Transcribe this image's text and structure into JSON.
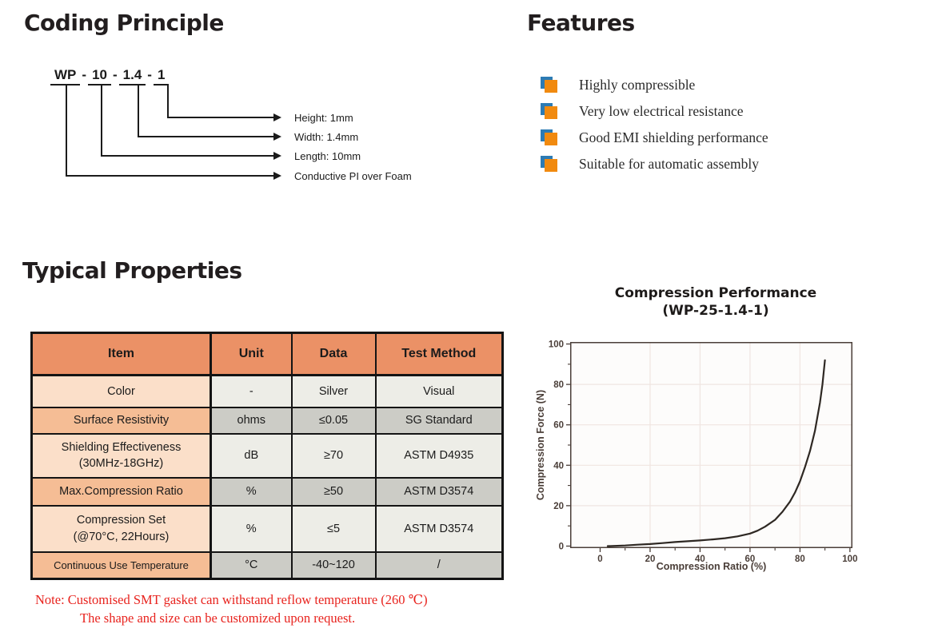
{
  "coding_principle": {
    "title": "Coding Principle",
    "code_segments": [
      "WP",
      "10",
      "1.4",
      "1"
    ],
    "separator": "-",
    "labels": [
      "Height: 1mm",
      "Width: 1.4mm",
      "Length: 10mm",
      "Conductive PI over Foam"
    ]
  },
  "features": {
    "title": "Features",
    "items": [
      "Highly compressible",
      "Very low electrical resistance",
      "Good EMI shielding performance",
      "Suitable for automatic assembly"
    ]
  },
  "typical_properties": {
    "title": "Typical Properties",
    "table": {
      "headers": [
        "Item",
        "Unit",
        "Data",
        "Test Method"
      ],
      "rows": [
        {
          "item": "Color",
          "unit": "-",
          "data": "Silver",
          "method": "Visual"
        },
        {
          "item": "Surface Resistivity",
          "unit": "ohms",
          "data": "≤0.05",
          "method": "SG Standard"
        },
        {
          "item_line1": "Shielding Effectiveness",
          "item_line2": "(30MHz-18GHz)",
          "unit": "dB",
          "data": "≥70",
          "method": "ASTM D4935"
        },
        {
          "item": "Max.Compression Ratio",
          "unit": "%",
          "data": "≥50",
          "method": "ASTM D3574"
        },
        {
          "item_line1": "Compression Set",
          "item_line2": "(@70°C, 22Hours)",
          "unit": "%",
          "data": "≤5",
          "method": "ASTM D3574"
        },
        {
          "item": "Continuous Use Temperature",
          "unit": "°C",
          "data": "-40~120",
          "method": "/"
        }
      ]
    },
    "note_line1": "Note: Customised SMT gasket can withstand reflow temperature (260 ℃)",
    "note_line2": "The shape and size can be customized upon request."
  },
  "colors": {
    "table_header_bg": "#EB9166",
    "item_light_bg": "#FBDFC9",
    "item_dark_bg": "#F5BD95",
    "data_light_bg": "#EDEDE7",
    "data_dark_bg": "#CCCCC6",
    "note_red": "#E8231E",
    "bullet_orange": "#F18A0F",
    "bullet_blue": "#2C7BB4"
  },
  "chart_data": {
    "type": "line",
    "title": "Compression Performance",
    "subtitle": "(WP-25-1.4-1)",
    "xlabel": "Compression Ratio (%)",
    "ylabel": "Compression Force (N)",
    "xlim": [
      -12,
      101
    ],
    "ylim": [
      -1,
      101
    ],
    "x_major_ticks": [
      0,
      20,
      40,
      60,
      80,
      100
    ],
    "x_minor_ticks": [
      10,
      30,
      50,
      70,
      90
    ],
    "y_major_ticks": [
      0,
      20,
      40,
      60,
      80,
      100
    ],
    "y_minor_ticks": [
      10,
      30,
      50,
      70,
      90
    ],
    "grid_values_x": [
      20,
      40,
      60,
      80
    ],
    "grid_values_y": [
      20,
      40,
      60,
      80
    ],
    "grid": true,
    "legend": false,
    "series": [
      {
        "name": "compression-force",
        "points": [
          [
            3,
            0
          ],
          [
            10,
            0.3
          ],
          [
            15,
            0.7
          ],
          [
            20,
            1
          ],
          [
            25,
            1.5
          ],
          [
            30,
            2
          ],
          [
            35,
            2.4
          ],
          [
            40,
            2.8
          ],
          [
            45,
            3.3
          ],
          [
            50,
            3.9
          ],
          [
            55,
            4.8
          ],
          [
            60,
            6.2
          ],
          [
            63,
            7.6
          ],
          [
            66,
            9.6
          ],
          [
            70,
            13
          ],
          [
            73,
            17
          ],
          [
            76,
            22
          ],
          [
            78,
            26.5
          ],
          [
            80,
            32
          ],
          [
            82,
            39
          ],
          [
            84,
            47
          ],
          [
            86,
            57
          ],
          [
            88,
            71
          ],
          [
            89,
            80
          ],
          [
            90,
            92
          ]
        ]
      }
    ],
    "colors": {
      "line": "#2E2823",
      "grid": "#F0E5E1",
      "frame": "#4A3E38",
      "text": "#4A3E38",
      "plot_bg": "#FDFCFB"
    }
  }
}
